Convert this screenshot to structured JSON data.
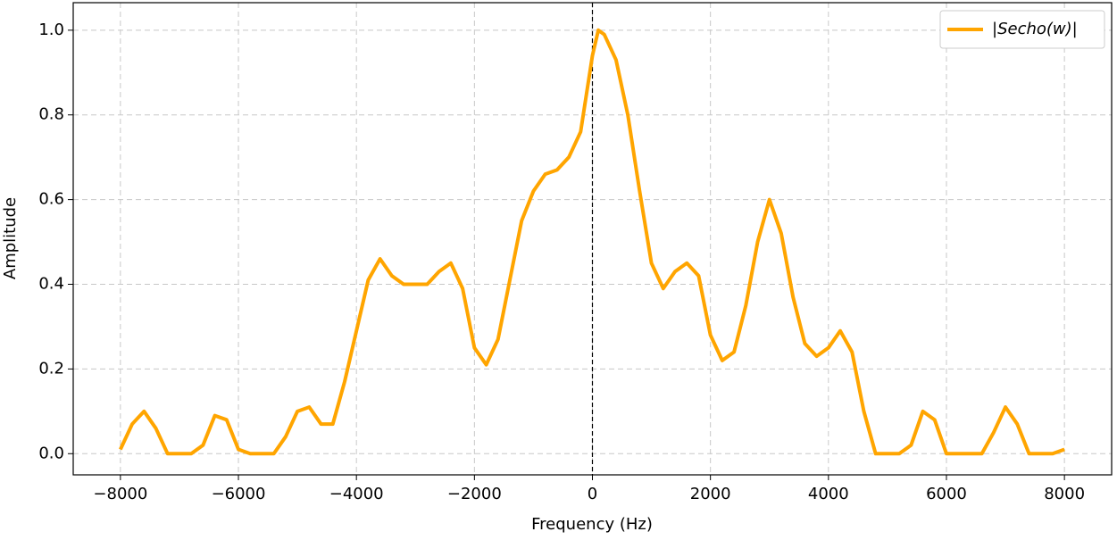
{
  "chart_data": {
    "type": "line",
    "xlabel": "Frequency (Hz)",
    "ylabel": "Amplitude",
    "x": [
      -8000,
      -7800,
      -7600,
      -7400,
      -7200,
      -7000,
      -6800,
      -6600,
      -6400,
      -6200,
      -6000,
      -5800,
      -5600,
      -5400,
      -5200,
      -5000,
      -4800,
      -4600,
      -4400,
      -4200,
      -4000,
      -3800,
      -3600,
      -3400,
      -3200,
      -3000,
      -2800,
      -2600,
      -2400,
      -2200,
      -2000,
      -1800,
      -1600,
      -1400,
      -1200,
      -1000,
      -800,
      -600,
      -400,
      -200,
      0,
      100,
      200,
      400,
      600,
      800,
      1000,
      1200,
      1400,
      1600,
      1800,
      2000,
      2200,
      2400,
      2600,
      2800,
      3000,
      3200,
      3400,
      3600,
      3800,
      4000,
      4200,
      4400,
      4600,
      4800,
      5000,
      5200,
      5400,
      5600,
      5800,
      6000,
      6200,
      6400,
      6600,
      6800,
      7000,
      7200,
      7400,
      7600,
      7800,
      8000
    ],
    "series": [
      {
        "name": "|Secho(w)|",
        "color": "#ffa500",
        "values": [
          0.01,
          0.07,
          0.1,
          0.06,
          0,
          0,
          0,
          0.02,
          0.09,
          0.08,
          0.01,
          0,
          0,
          0,
          0.04,
          0.1,
          0.11,
          0.07,
          0.07,
          0.17,
          0.29,
          0.41,
          0.46,
          0.42,
          0.4,
          0.4,
          0.4,
          0.43,
          0.45,
          0.39,
          0.25,
          0.21,
          0.27,
          0.41,
          0.55,
          0.62,
          0.66,
          0.67,
          0.7,
          0.76,
          0.94,
          1.0,
          0.99,
          0.93,
          0.8,
          0.62,
          0.45,
          0.39,
          0.43,
          0.45,
          0.42,
          0.28,
          0.22,
          0.24,
          0.35,
          0.5,
          0.6,
          0.52,
          0.37,
          0.26,
          0.23,
          0.25,
          0.29,
          0.24,
          0.1,
          0,
          0,
          0,
          0.02,
          0.1,
          0.08,
          0,
          0,
          0,
          0,
          0.05,
          0.11,
          0.07,
          0,
          0,
          0,
          0.01
        ]
      }
    ],
    "xlim": [
      -8800,
      8800
    ],
    "ylim": [
      -0.05,
      1.065
    ],
    "xticks": [
      {
        "value": -8000,
        "label": "−8000"
      },
      {
        "value": -6000,
        "label": "−6000"
      },
      {
        "value": -4000,
        "label": "−4000"
      },
      {
        "value": -2000,
        "label": "−2000"
      },
      0,
      2000,
      4000,
      6000,
      8000
    ],
    "yticks": [
      {
        "value": 0,
        "label": "0.0"
      },
      {
        "value": 0.2,
        "label": "0.2"
      },
      {
        "value": 0.4,
        "label": "0.4"
      },
      {
        "value": 0.6,
        "label": "0.6"
      },
      {
        "value": 0.8,
        "label": "0.8"
      },
      {
        "value": 1,
        "label": "1.0"
      }
    ],
    "vline": 0,
    "grid": true,
    "legend": "upper right"
  }
}
